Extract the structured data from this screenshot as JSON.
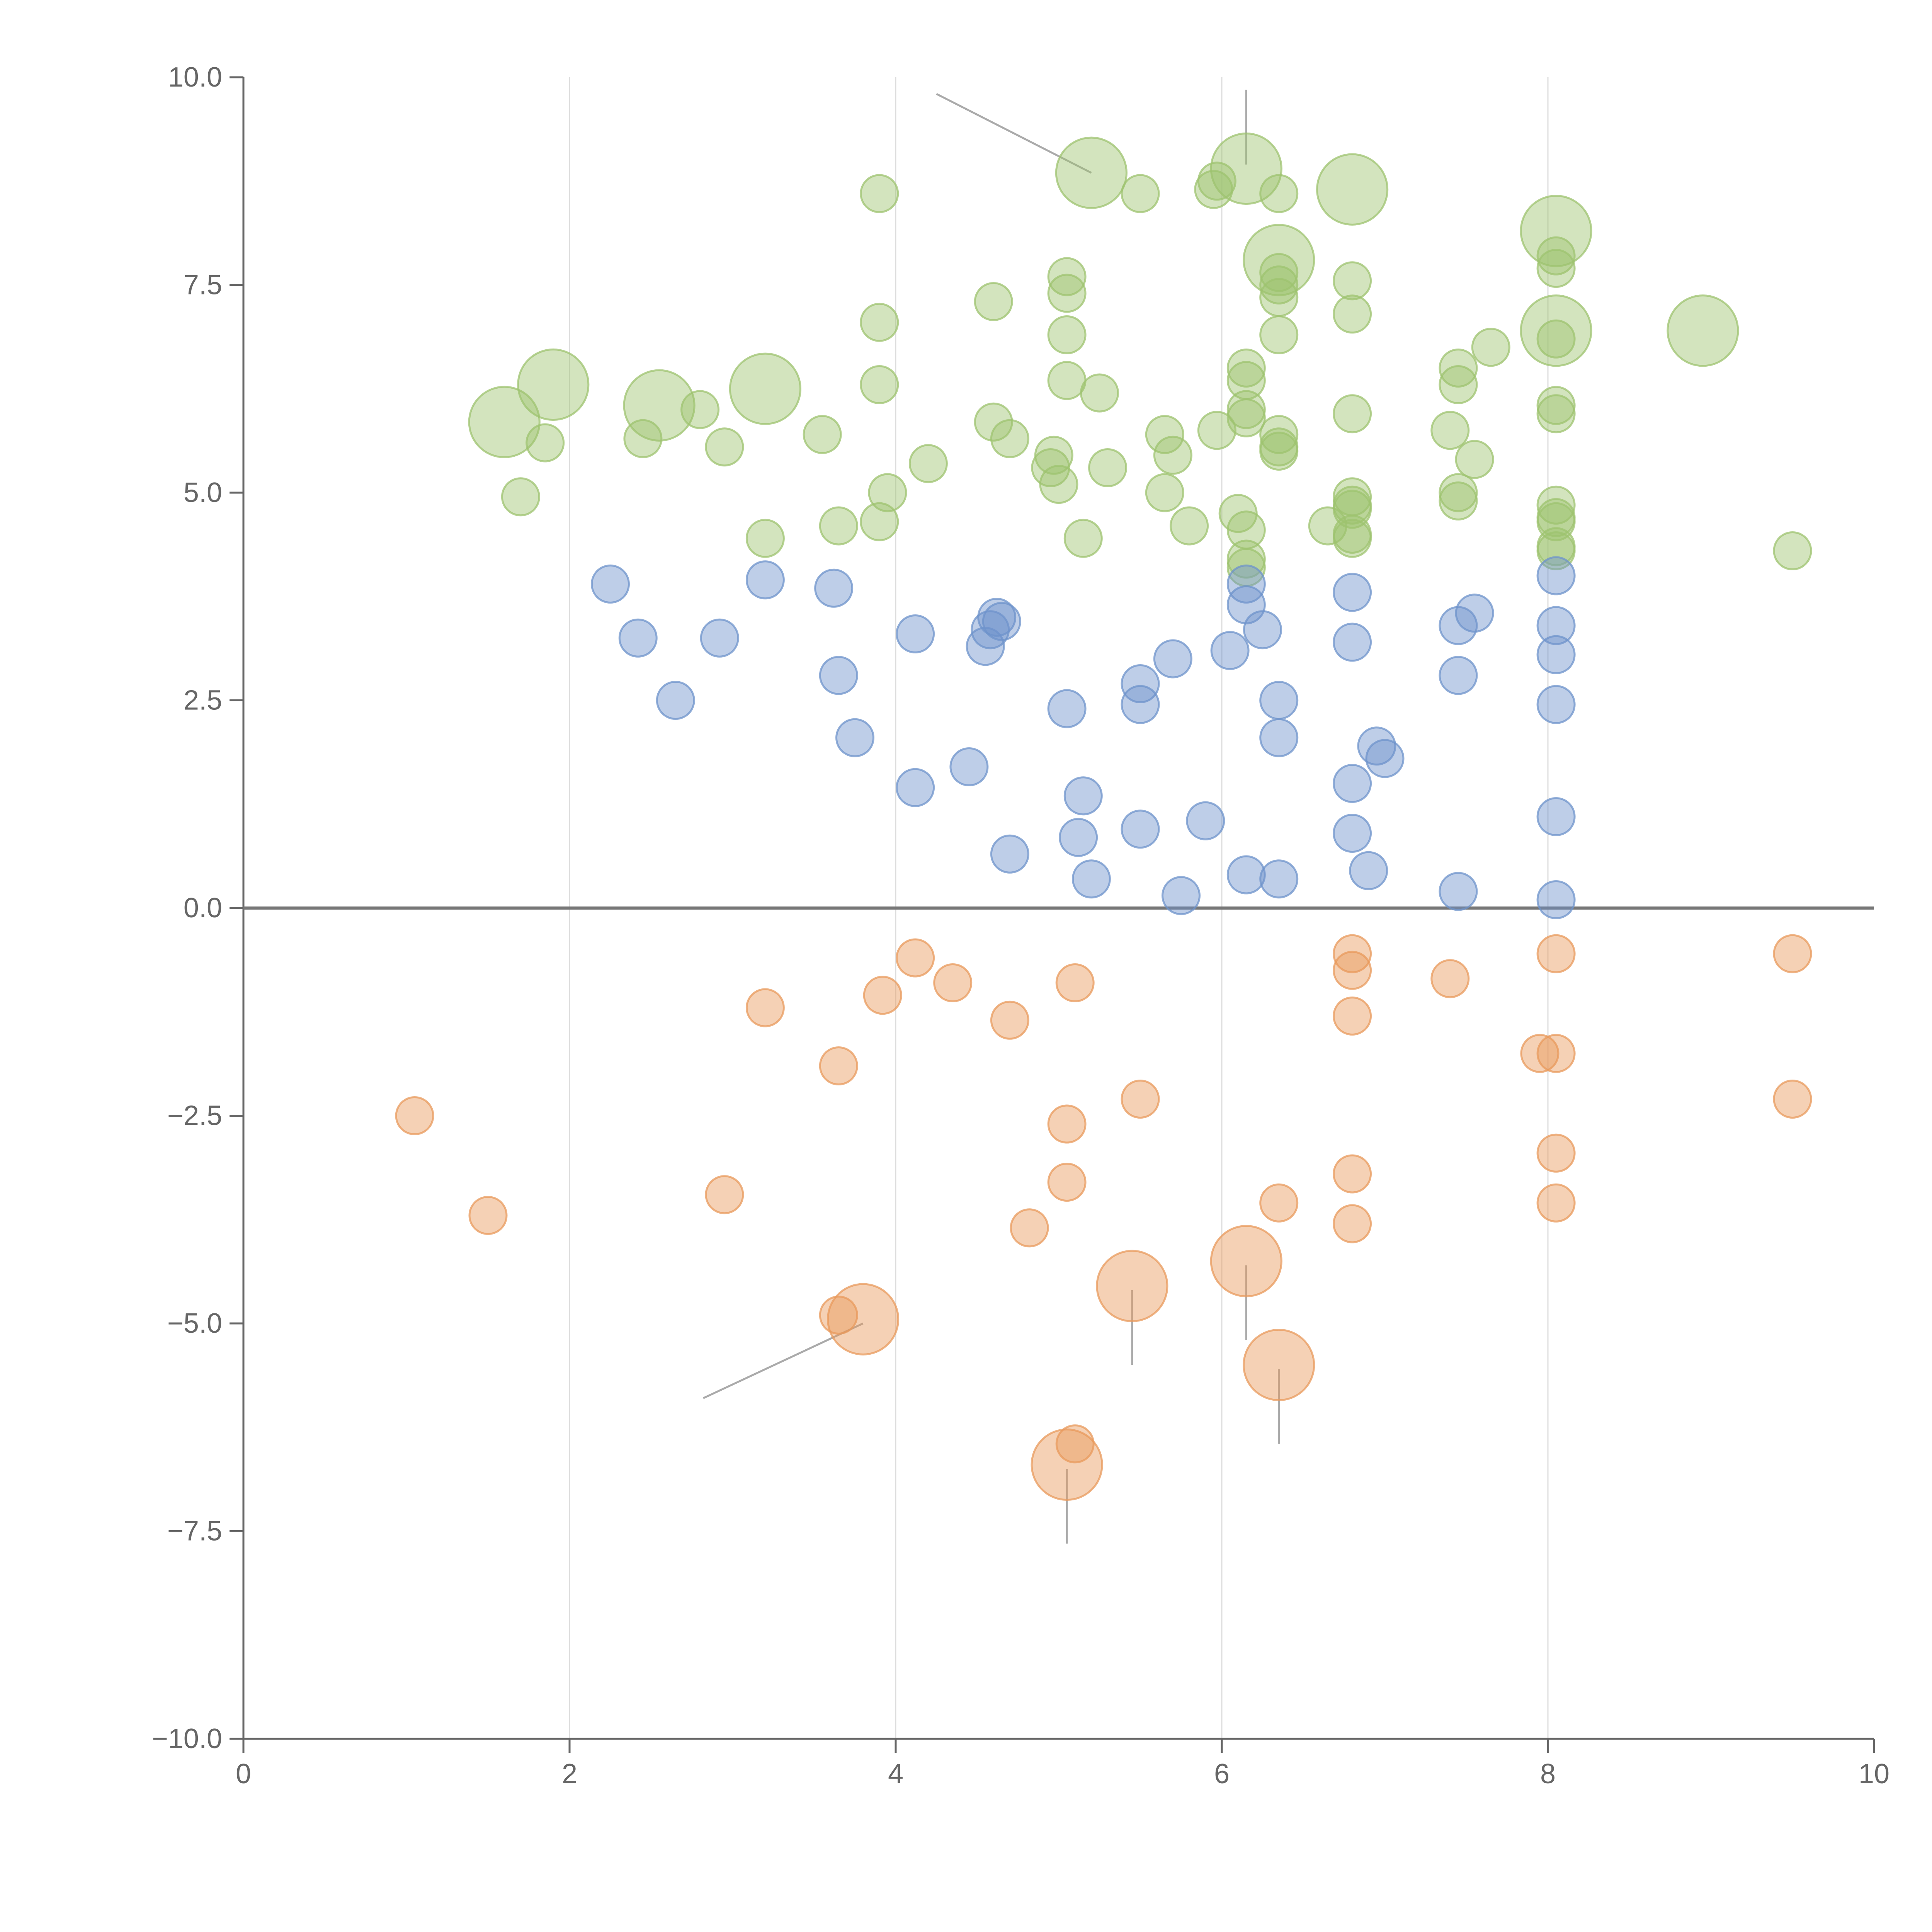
{
  "chart_data": {
    "type": "scatter",
    "subtype": "bubble",
    "title": "",
    "xlabel": "",
    "ylabel": "",
    "xlim": [
      0,
      10
    ],
    "ylim": [
      -10,
      10
    ],
    "x_ticks": [
      0,
      2,
      4,
      6,
      8,
      10
    ],
    "x_tick_labels": [
      "0",
      "2",
      "4",
      "6",
      "8",
      "10"
    ],
    "y_ticks": [
      -10,
      -7.5,
      -5,
      -2.5,
      0,
      2.5,
      5,
      7.5,
      10
    ],
    "y_tick_labels": [
      "−10.0",
      "−7.5",
      "−5.0",
      "−2.5",
      "0.0",
      "2.5",
      "5.0",
      "7.5",
      "10.0"
    ],
    "grid": "vertical",
    "zero_line": true,
    "colors": {
      "green": "#9dc36f",
      "blue": "#6e93cb",
      "orange": "#e8995c",
      "axis": "#666666",
      "grid": "#dddddd",
      "zero_line": "#777777",
      "leader": "#aaaaaa"
    },
    "series": [
      {
        "name": "green",
        "color": "#9dc36f",
        "points": [
          [
            1.6,
            5.85,
            1.6
          ],
          [
            1.9,
            6.3,
            1.6
          ],
          [
            2.55,
            6.05,
            1.6
          ],
          [
            3.2,
            6.25,
            1.6
          ],
          [
            5.2,
            8.85,
            1.6
          ],
          [
            6.15,
            8.9,
            1.6
          ],
          [
            6.8,
            8.65,
            1.6
          ],
          [
            8.05,
            8.15,
            1.6
          ],
          [
            6.35,
            7.8,
            1.6
          ],
          [
            8.05,
            6.95,
            1.6
          ],
          [
            8.95,
            6.95,
            1.6
          ],
          [
            1.7,
            4.95,
            1
          ],
          [
            1.85,
            5.6,
            1
          ],
          [
            2.45,
            5.65,
            1
          ],
          [
            2.8,
            6.0,
            1
          ],
          [
            2.95,
            5.55,
            1
          ],
          [
            3.2,
            4.45,
            1
          ],
          [
            3.55,
            5.7,
            1
          ],
          [
            3.65,
            4.6,
            1
          ],
          [
            3.9,
            8.6,
            1
          ],
          [
            3.9,
            7.05,
            1
          ],
          [
            3.9,
            6.3,
            1
          ],
          [
            3.9,
            4.65,
            1
          ],
          [
            3.95,
            5.0,
            1
          ],
          [
            4.2,
            5.35,
            1
          ],
          [
            4.6,
            7.3,
            1
          ],
          [
            4.6,
            5.85,
            1
          ],
          [
            4.7,
            5.65,
            1
          ],
          [
            4.95,
            5.3,
            1
          ],
          [
            4.97,
            5.45,
            1
          ],
          [
            5.0,
            5.1,
            1
          ],
          [
            5.05,
            7.6,
            1
          ],
          [
            5.05,
            7.4,
            1
          ],
          [
            5.05,
            6.9,
            1
          ],
          [
            5.05,
            6.35,
            1
          ],
          [
            5.15,
            4.45,
            1
          ],
          [
            5.25,
            6.2,
            1
          ],
          [
            5.3,
            5.3,
            1
          ],
          [
            5.5,
            8.6,
            1
          ],
          [
            5.65,
            5.7,
            1
          ],
          [
            5.7,
            5.45,
            1
          ],
          [
            5.65,
            5.0,
            1
          ],
          [
            5.8,
            4.6,
            1
          ],
          [
            5.95,
            8.65,
            1
          ],
          [
            5.97,
            8.75,
            1
          ],
          [
            5.97,
            5.75,
            1
          ],
          [
            6.1,
            4.75,
            1
          ],
          [
            6.15,
            6.5,
            1
          ],
          [
            6.15,
            6.35,
            1
          ],
          [
            6.15,
            6.0,
            1
          ],
          [
            6.15,
            5.9,
            1
          ],
          [
            6.15,
            4.55,
            1
          ],
          [
            6.15,
            4.2,
            1
          ],
          [
            6.15,
            4.1,
            1
          ],
          [
            6.35,
            8.6,
            1
          ],
          [
            6.35,
            7.65,
            1
          ],
          [
            6.35,
            7.5,
            1
          ],
          [
            6.35,
            7.35,
            1
          ],
          [
            6.35,
            6.9,
            1
          ],
          [
            6.35,
            5.7,
            1
          ],
          [
            6.35,
            5.55,
            1
          ],
          [
            6.35,
            5.5,
            1
          ],
          [
            6.65,
            4.6,
            1
          ],
          [
            6.8,
            7.55,
            1
          ],
          [
            6.8,
            7.15,
            1
          ],
          [
            6.8,
            5.95,
            1
          ],
          [
            6.8,
            4.95,
            1
          ],
          [
            6.8,
            4.85,
            1
          ],
          [
            6.8,
            4.8,
            1
          ],
          [
            6.8,
            4.5,
            1
          ],
          [
            6.8,
            4.45,
            1
          ],
          [
            7.4,
            5.75,
            1
          ],
          [
            7.45,
            6.5,
            1
          ],
          [
            7.45,
            6.3,
            1
          ],
          [
            7.45,
            5.0,
            1
          ],
          [
            7.45,
            4.9,
            1
          ],
          [
            7.55,
            5.4,
            1
          ],
          [
            7.65,
            6.75,
            1
          ],
          [
            8.05,
            7.85,
            1
          ],
          [
            8.05,
            7.7,
            1
          ],
          [
            8.05,
            6.85,
            1
          ],
          [
            8.05,
            6.05,
            1
          ],
          [
            8.05,
            5.95,
            1
          ],
          [
            8.05,
            4.85,
            1
          ],
          [
            8.05,
            4.7,
            1
          ],
          [
            8.05,
            4.65,
            1
          ],
          [
            8.05,
            4.35,
            1
          ],
          [
            8.05,
            4.3,
            1
          ],
          [
            9.5,
            4.3,
            1
          ]
        ]
      },
      {
        "name": "blue",
        "color": "#6e93cb",
        "points": [
          [
            2.25,
            3.9,
            1
          ],
          [
            2.42,
            3.25,
            1
          ],
          [
            2.65,
            2.5,
            1
          ],
          [
            2.92,
            3.25,
            1
          ],
          [
            3.2,
            3.95,
            1
          ],
          [
            3.62,
            3.85,
            1
          ],
          [
            3.65,
            2.8,
            1
          ],
          [
            3.75,
            2.05,
            1
          ],
          [
            4.12,
            3.3,
            1
          ],
          [
            4.12,
            1.45,
            1
          ],
          [
            4.45,
            1.7,
            1
          ],
          [
            4.55,
            3.15,
            1
          ],
          [
            4.58,
            3.35,
            1
          ],
          [
            4.62,
            3.5,
            1
          ],
          [
            4.65,
            3.45,
            1
          ],
          [
            4.7,
            0.65,
            1
          ],
          [
            5.05,
            2.4,
            1
          ],
          [
            5.15,
            1.35,
            1
          ],
          [
            5.12,
            0.85,
            1
          ],
          [
            5.2,
            0.35,
            1
          ],
          [
            5.5,
            2.7,
            1
          ],
          [
            5.5,
            2.45,
            1
          ],
          [
            5.5,
            0.95,
            1
          ],
          [
            5.7,
            3.0,
            1
          ],
          [
            5.75,
            0.15,
            1
          ],
          [
            5.9,
            1.05,
            1
          ],
          [
            6.05,
            3.1,
            1
          ],
          [
            6.15,
            3.9,
            1
          ],
          [
            6.15,
            3.65,
            1
          ],
          [
            6.15,
            0.4,
            1
          ],
          [
            6.25,
            3.35,
            1
          ],
          [
            6.35,
            2.5,
            1
          ],
          [
            6.35,
            2.05,
            1
          ],
          [
            6.35,
            0.35,
            1
          ],
          [
            6.8,
            3.8,
            1
          ],
          [
            6.8,
            3.2,
            1
          ],
          [
            6.8,
            1.5,
            1
          ],
          [
            6.8,
            0.9,
            1
          ],
          [
            6.9,
            0.45,
            1
          ],
          [
            6.95,
            1.95,
            1
          ],
          [
            7.0,
            1.8,
            1
          ],
          [
            7.45,
            3.4,
            1
          ],
          [
            7.45,
            2.8,
            1
          ],
          [
            7.45,
            0.2,
            1
          ],
          [
            7.55,
            3.55,
            1
          ],
          [
            8.05,
            4.0,
            1
          ],
          [
            8.05,
            3.4,
            1
          ],
          [
            8.05,
            3.05,
            1
          ],
          [
            8.05,
            2.45,
            1
          ],
          [
            8.05,
            1.1,
            1
          ],
          [
            8.05,
            0.1,
            1
          ]
        ]
      },
      {
        "name": "orange",
        "color": "#e8995c",
        "points": [
          [
            1.05,
            -2.5,
            1
          ],
          [
            1.5,
            -3.7,
            1
          ],
          [
            2.95,
            -3.45,
            1
          ],
          [
            3.2,
            -1.2,
            1
          ],
          [
            3.65,
            -1.9,
            1
          ],
          [
            3.65,
            -4.9,
            1
          ],
          [
            3.8,
            -4.95,
            1.6
          ],
          [
            3.92,
            -1.05,
            1
          ],
          [
            4.12,
            -0.6,
            1
          ],
          [
            4.35,
            -0.9,
            1
          ],
          [
            4.7,
            -1.35,
            1
          ],
          [
            4.82,
            -3.85,
            1
          ],
          [
            5.05,
            -2.6,
            1
          ],
          [
            5.05,
            -3.3,
            1
          ],
          [
            5.05,
            -6.7,
            1.6
          ],
          [
            5.1,
            -0.9,
            1
          ],
          [
            5.1,
            -6.45,
            1
          ],
          [
            5.5,
            -2.3,
            1
          ],
          [
            5.45,
            -4.55,
            1.6
          ],
          [
            6.15,
            -4.25,
            1.6
          ],
          [
            6.35,
            -3.55,
            1
          ],
          [
            6.35,
            -5.5,
            1.6
          ],
          [
            6.8,
            -0.55,
            1
          ],
          [
            6.8,
            -0.75,
            1
          ],
          [
            6.8,
            -1.3,
            1
          ],
          [
            6.8,
            -3.2,
            1
          ],
          [
            6.8,
            -3.8,
            1
          ],
          [
            7.4,
            -0.85,
            1
          ],
          [
            7.95,
            -1.75,
            1
          ],
          [
            8.05,
            -0.55,
            1
          ],
          [
            8.05,
            -1.75,
            1
          ],
          [
            8.05,
            -2.95,
            1
          ],
          [
            8.05,
            -3.55,
            1
          ],
          [
            9.5,
            -0.55,
            1
          ],
          [
            9.5,
            -2.3,
            1
          ]
        ]
      }
    ],
    "annotations": [
      {
        "text": "",
        "x": 5.2,
        "y": 8.85,
        "lx": 4.25,
        "ly": 9.8
      },
      {
        "text": "",
        "x": 6.15,
        "y": 8.95,
        "lx": 6.15,
        "ly": 9.85
      },
      {
        "text": "",
        "x": 3.8,
        "y": -5.0,
        "lx": 2.82,
        "ly": -5.9
      },
      {
        "text": "",
        "x": 5.45,
        "y": -4.6,
        "lx": 5.45,
        "ly": -5.5
      },
      {
        "text": "",
        "x": 6.15,
        "y": -4.3,
        "lx": 6.15,
        "ly": -5.2
      },
      {
        "text": "",
        "x": 6.35,
        "y": -5.55,
        "lx": 6.35,
        "ly": -6.45
      },
      {
        "text": "",
        "x": 5.05,
        "y": -6.75,
        "lx": 5.05,
        "ly": -7.65
      }
    ]
  }
}
